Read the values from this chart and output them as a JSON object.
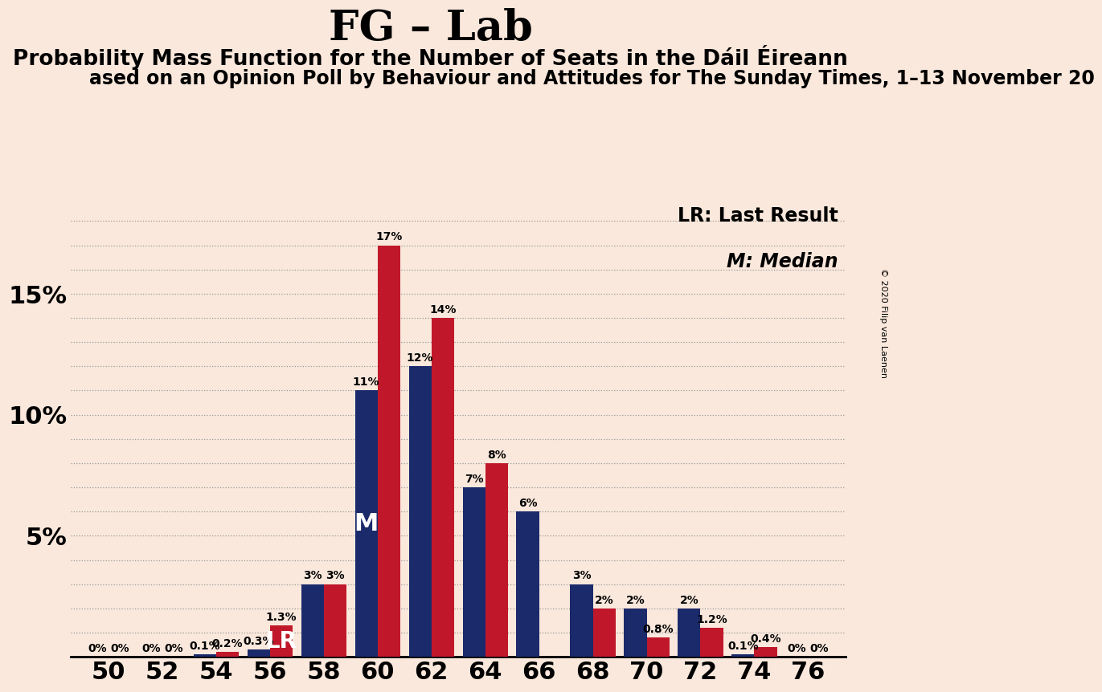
{
  "title": "FG – Lab",
  "subtitle1": "Probability Mass Function for the Number of Seats in the Dáil Éireann",
  "subtitle2": "ased on an Opinion Poll by Behaviour and Attitudes for The Sunday Times, 1–13 November 20",
  "copyright": "© 2020 Filip van Laenen",
  "background_color": "#fae8dc",
  "bar_color_navy": "#1b2a6b",
  "bar_color_red": "#c0182a",
  "seats": [
    50,
    52,
    54,
    56,
    58,
    60,
    62,
    64,
    66,
    68,
    70,
    72,
    74,
    76
  ],
  "navy_values": [
    0.0,
    0.0,
    0.1,
    0.3,
    3.0,
    11.0,
    12.0,
    7.0,
    6.0,
    3.0,
    2.0,
    2.0,
    0.1,
    0.0
  ],
  "red_values": [
    0.0,
    0.0,
    0.2,
    1.3,
    3.0,
    17.0,
    14.0,
    8.0,
    0.0,
    2.0,
    0.8,
    1.2,
    0.4,
    0.0
  ],
  "navy_labels": [
    "0%",
    "0%",
    "0.1%",
    "0.3%",
    "3%",
    "11%",
    "12%",
    "7%",
    "6%",
    "3%",
    "2%",
    "2%",
    "0.1%",
    "0%"
  ],
  "red_labels": [
    "0%",
    "0%",
    "0.2%",
    "1.3%",
    "3%",
    "17%",
    "14%",
    "8%",
    "",
    "2%",
    "0.8%",
    "1.2%",
    "0.4%",
    "0%"
  ],
  "lr_seat_idx": 3,
  "median_seat_idx": 5,
  "lr_label": "LR",
  "median_label": "M",
  "lr_legend": "LR: Last Result",
  "median_legend": "M: Median",
  "ytick_values": [
    5,
    10,
    15
  ],
  "ylabel_ticks": [
    "5%",
    "10%",
    "15%"
  ],
  "ylim": [
    0,
    19
  ],
  "bar_width": 0.42,
  "title_fontsize": 38,
  "subtitle1_fontsize": 19,
  "subtitle2_fontsize": 17,
  "tick_fontsize": 22,
  "label_fontsize": 10,
  "legend_fontsize": 17,
  "annot_fontsize_lr": 20,
  "annot_fontsize_m": 22
}
